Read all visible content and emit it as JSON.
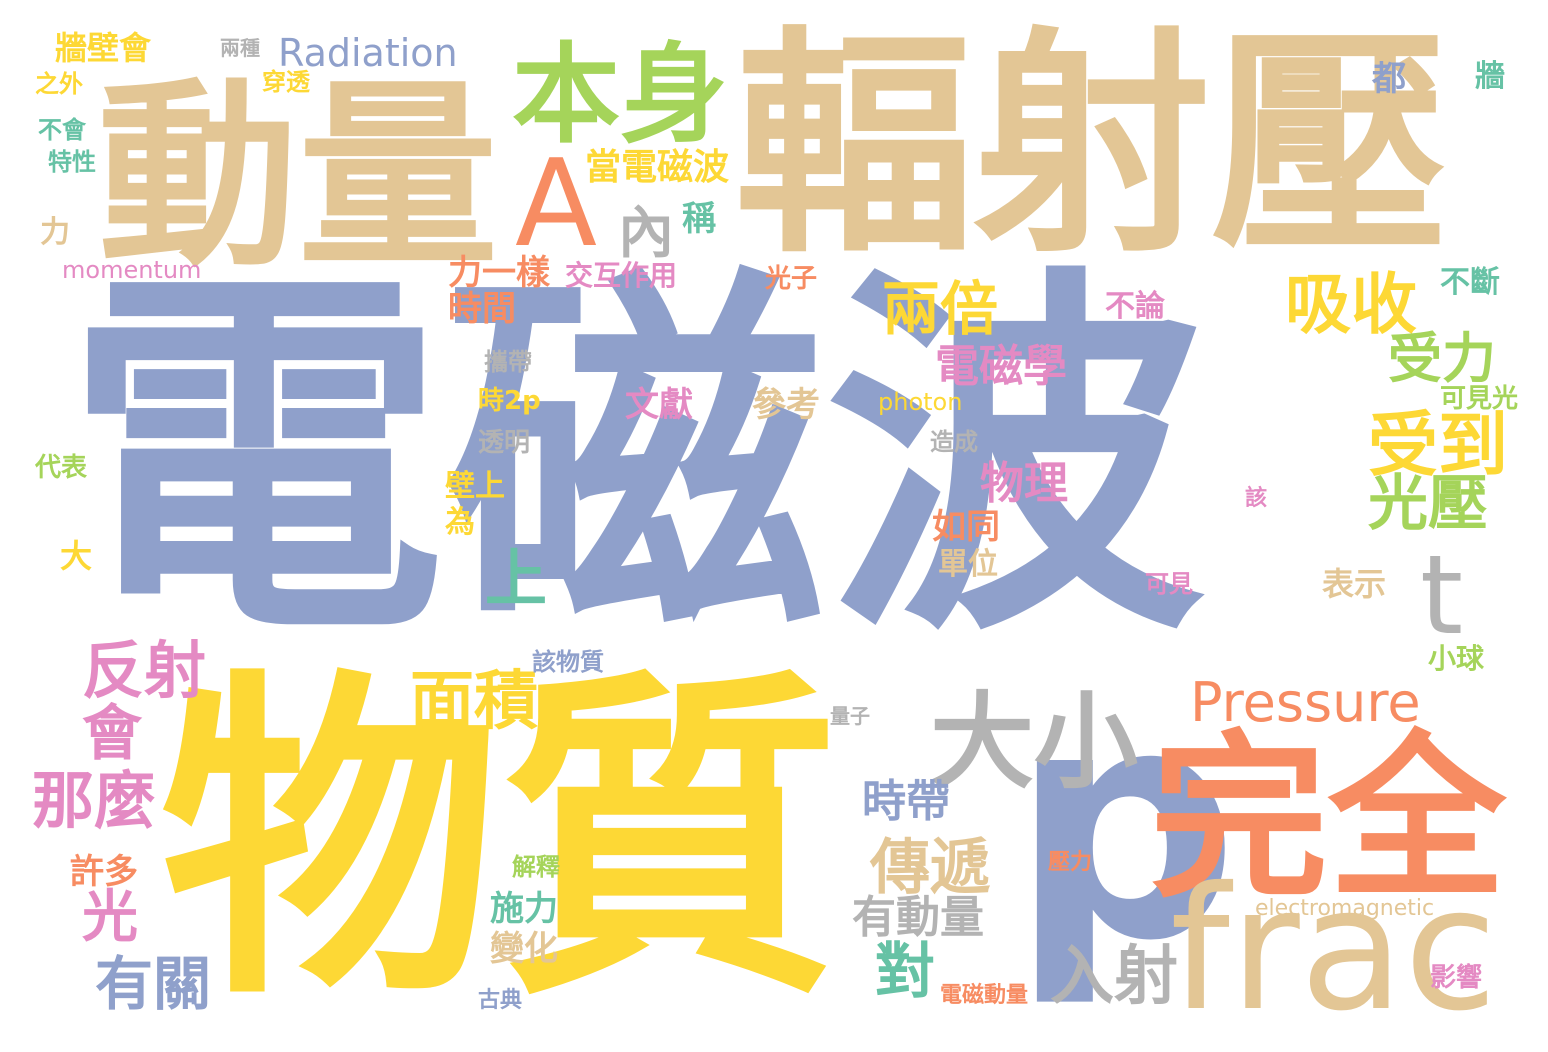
{
  "colors": {
    "blue": "#8fa0cb",
    "tan": "#e3c695",
    "yellow": "#fdd835",
    "orange": "#f78c62",
    "green": "#a5d45a",
    "gray": "#b3b3b3",
    "pink": "#e48ac3",
    "teal": "#66c2a5"
  },
  "words": [
    {
      "text": "電磁波",
      "color": "blue"
    },
    {
      "text": "輻射壓",
      "color": "tan"
    },
    {
      "text": "物質",
      "color": "yellow"
    },
    {
      "text": "動量",
      "color": "tan"
    },
    {
      "text": "p",
      "color": "blue"
    },
    {
      "text": "完全",
      "color": "orange"
    },
    {
      "text": "frac",
      "color": "tan"
    },
    {
      "text": "本身",
      "color": "green"
    },
    {
      "text": "A",
      "color": "orange"
    },
    {
      "text": "大小",
      "color": "gray"
    },
    {
      "text": "t",
      "color": "gray"
    },
    {
      "text": "Pressure",
      "color": "orange"
    },
    {
      "text": "Radiation",
      "color": "blue"
    },
    {
      "text": "內",
      "color": "gray"
    },
    {
      "text": "吸收",
      "color": "yellow"
    },
    {
      "text": "兩倍",
      "color": "yellow"
    },
    {
      "text": "受力",
      "color": "green"
    },
    {
      "text": "受到",
      "color": "yellow"
    },
    {
      "text": "光壓",
      "color": "green"
    },
    {
      "text": "反射",
      "color": "pink"
    },
    {
      "text": "會",
      "color": "pink"
    },
    {
      "text": "那麼",
      "color": "pink"
    },
    {
      "text": "面積",
      "color": "yellow"
    },
    {
      "text": "上",
      "color": "teal"
    },
    {
      "text": "光",
      "color": "pink"
    },
    {
      "text": "有關",
      "color": "blue"
    },
    {
      "text": "傳遞",
      "color": "tan"
    },
    {
      "text": "對",
      "color": "teal"
    },
    {
      "text": "入射",
      "color": "gray"
    },
    {
      "text": "電磁學",
      "color": "pink"
    },
    {
      "text": "物理",
      "color": "pink"
    },
    {
      "text": "時帶",
      "color": "blue"
    },
    {
      "text": "有動量",
      "color": "gray"
    },
    {
      "text": "當電磁波",
      "color": "yellow"
    },
    {
      "text": "力一樣",
      "color": "orange"
    },
    {
      "text": "時間",
      "color": "orange"
    },
    {
      "text": "牆壁會",
      "color": "yellow"
    },
    {
      "text": "momentum",
      "color": "pink"
    },
    {
      "text": "交互作用",
      "color": "pink"
    },
    {
      "text": "穿透",
      "color": "yellow"
    },
    {
      "text": "兩種",
      "color": "gray"
    },
    {
      "text": "之外",
      "color": "yellow"
    },
    {
      "text": "不會",
      "color": "teal"
    },
    {
      "text": "特性",
      "color": "teal"
    },
    {
      "text": "力",
      "color": "tan"
    },
    {
      "text": "代表",
      "color": "green"
    },
    {
      "text": "大",
      "color": "yellow"
    },
    {
      "text": "許多",
      "color": "orange"
    },
    {
      "text": "都",
      "color": "blue"
    },
    {
      "text": "牆",
      "color": "teal"
    },
    {
      "text": "稱",
      "color": "teal"
    },
    {
      "text": "不斷",
      "color": "teal"
    },
    {
      "text": "可見光",
      "color": "green"
    },
    {
      "text": "小球",
      "color": "green"
    },
    {
      "text": "影響",
      "color": "pink"
    },
    {
      "text": "光子",
      "color": "orange"
    },
    {
      "text": "不論",
      "color": "pink"
    },
    {
      "text": "攜帶",
      "color": "gray"
    },
    {
      "text": "時2p",
      "color": "yellow"
    },
    {
      "text": "文獻",
      "color": "pink"
    },
    {
      "text": "參考",
      "color": "tan"
    },
    {
      "text": "photon",
      "color": "yellow"
    },
    {
      "text": "造成",
      "color": "gray"
    },
    {
      "text": "透明",
      "color": "gray"
    },
    {
      "text": "壁上",
      "color": "yellow"
    },
    {
      "text": "為",
      "color": "yellow"
    },
    {
      "text": "如同",
      "color": "orange"
    },
    {
      "text": "單位",
      "color": "tan"
    },
    {
      "text": "該",
      "color": "pink"
    },
    {
      "text": "可見",
      "color": "pink"
    },
    {
      "text": "表示",
      "color": "tan"
    },
    {
      "text": "該物質",
      "color": "blue"
    },
    {
      "text": "量子",
      "color": "gray"
    },
    {
      "text": "解釋",
      "color": "green"
    },
    {
      "text": "壓力",
      "color": "orange"
    },
    {
      "text": "electromagnetic",
      "color": "tan"
    },
    {
      "text": "施力",
      "color": "teal"
    },
    {
      "text": "變化",
      "color": "tan"
    },
    {
      "text": "古典",
      "color": "blue"
    },
    {
      "text": "電磁動量",
      "color": "orange"
    }
  ]
}
